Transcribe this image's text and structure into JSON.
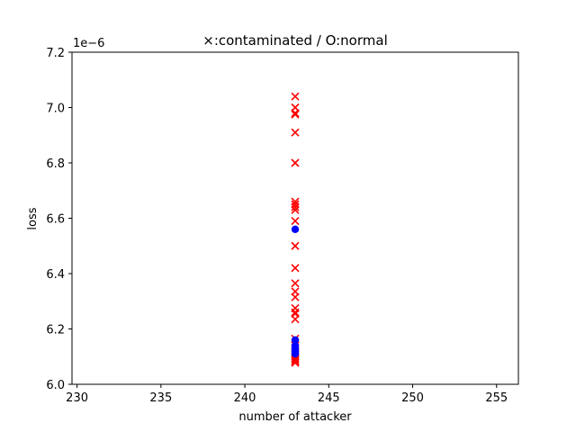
{
  "chart_data": {
    "type": "scatter",
    "title": "×:contaminated / O:normal",
    "xlabel": "number of attacker",
    "ylabel": "loss",
    "y_offset_label": "1e−6",
    "xlim": [
      229.7,
      256.3
    ],
    "ylim": [
      6.0,
      7.2
    ],
    "x_ticks": [
      230,
      235,
      240,
      245,
      250,
      255
    ],
    "y_ticks": [
      6.0,
      6.2,
      6.4,
      6.6,
      6.8,
      7.0,
      7.2
    ],
    "x_tick_labels": [
      "230",
      "235",
      "240",
      "245",
      "250",
      "255"
    ],
    "y_tick_labels": [
      "6.0",
      "6.2",
      "6.4",
      "6.6",
      "6.8",
      "7.0",
      "7.2"
    ],
    "grid": false,
    "series": [
      {
        "marker": "x",
        "color": "#ff0000",
        "x": [
          243,
          243,
          243,
          243,
          243,
          243,
          243,
          243,
          243,
          243,
          243,
          243,
          243,
          243,
          243,
          243,
          243,
          243,
          243,
          243,
          243,
          243,
          243,
          243,
          243,
          243,
          243,
          243,
          243,
          243,
          243,
          243
        ],
        "y": [
          7.04,
          7.0,
          6.98,
          6.975,
          6.91,
          6.8,
          6.66,
          6.65,
          6.64,
          6.63,
          6.59,
          6.5,
          6.42,
          6.365,
          6.335,
          6.315,
          6.275,
          6.26,
          6.255,
          6.235,
          6.165,
          6.15,
          6.14,
          6.13,
          6.12,
          6.11,
          6.1,
          6.095,
          6.09,
          6.085,
          6.08,
          6.078
        ]
      },
      {
        "marker": "o",
        "color": "#0000ff",
        "x": [
          243,
          243,
          243,
          243,
          243,
          243,
          243,
          243
        ],
        "y": [
          6.56,
          6.16,
          6.14,
          6.13,
          6.125,
          6.12,
          6.115,
          6.11
        ]
      }
    ]
  }
}
